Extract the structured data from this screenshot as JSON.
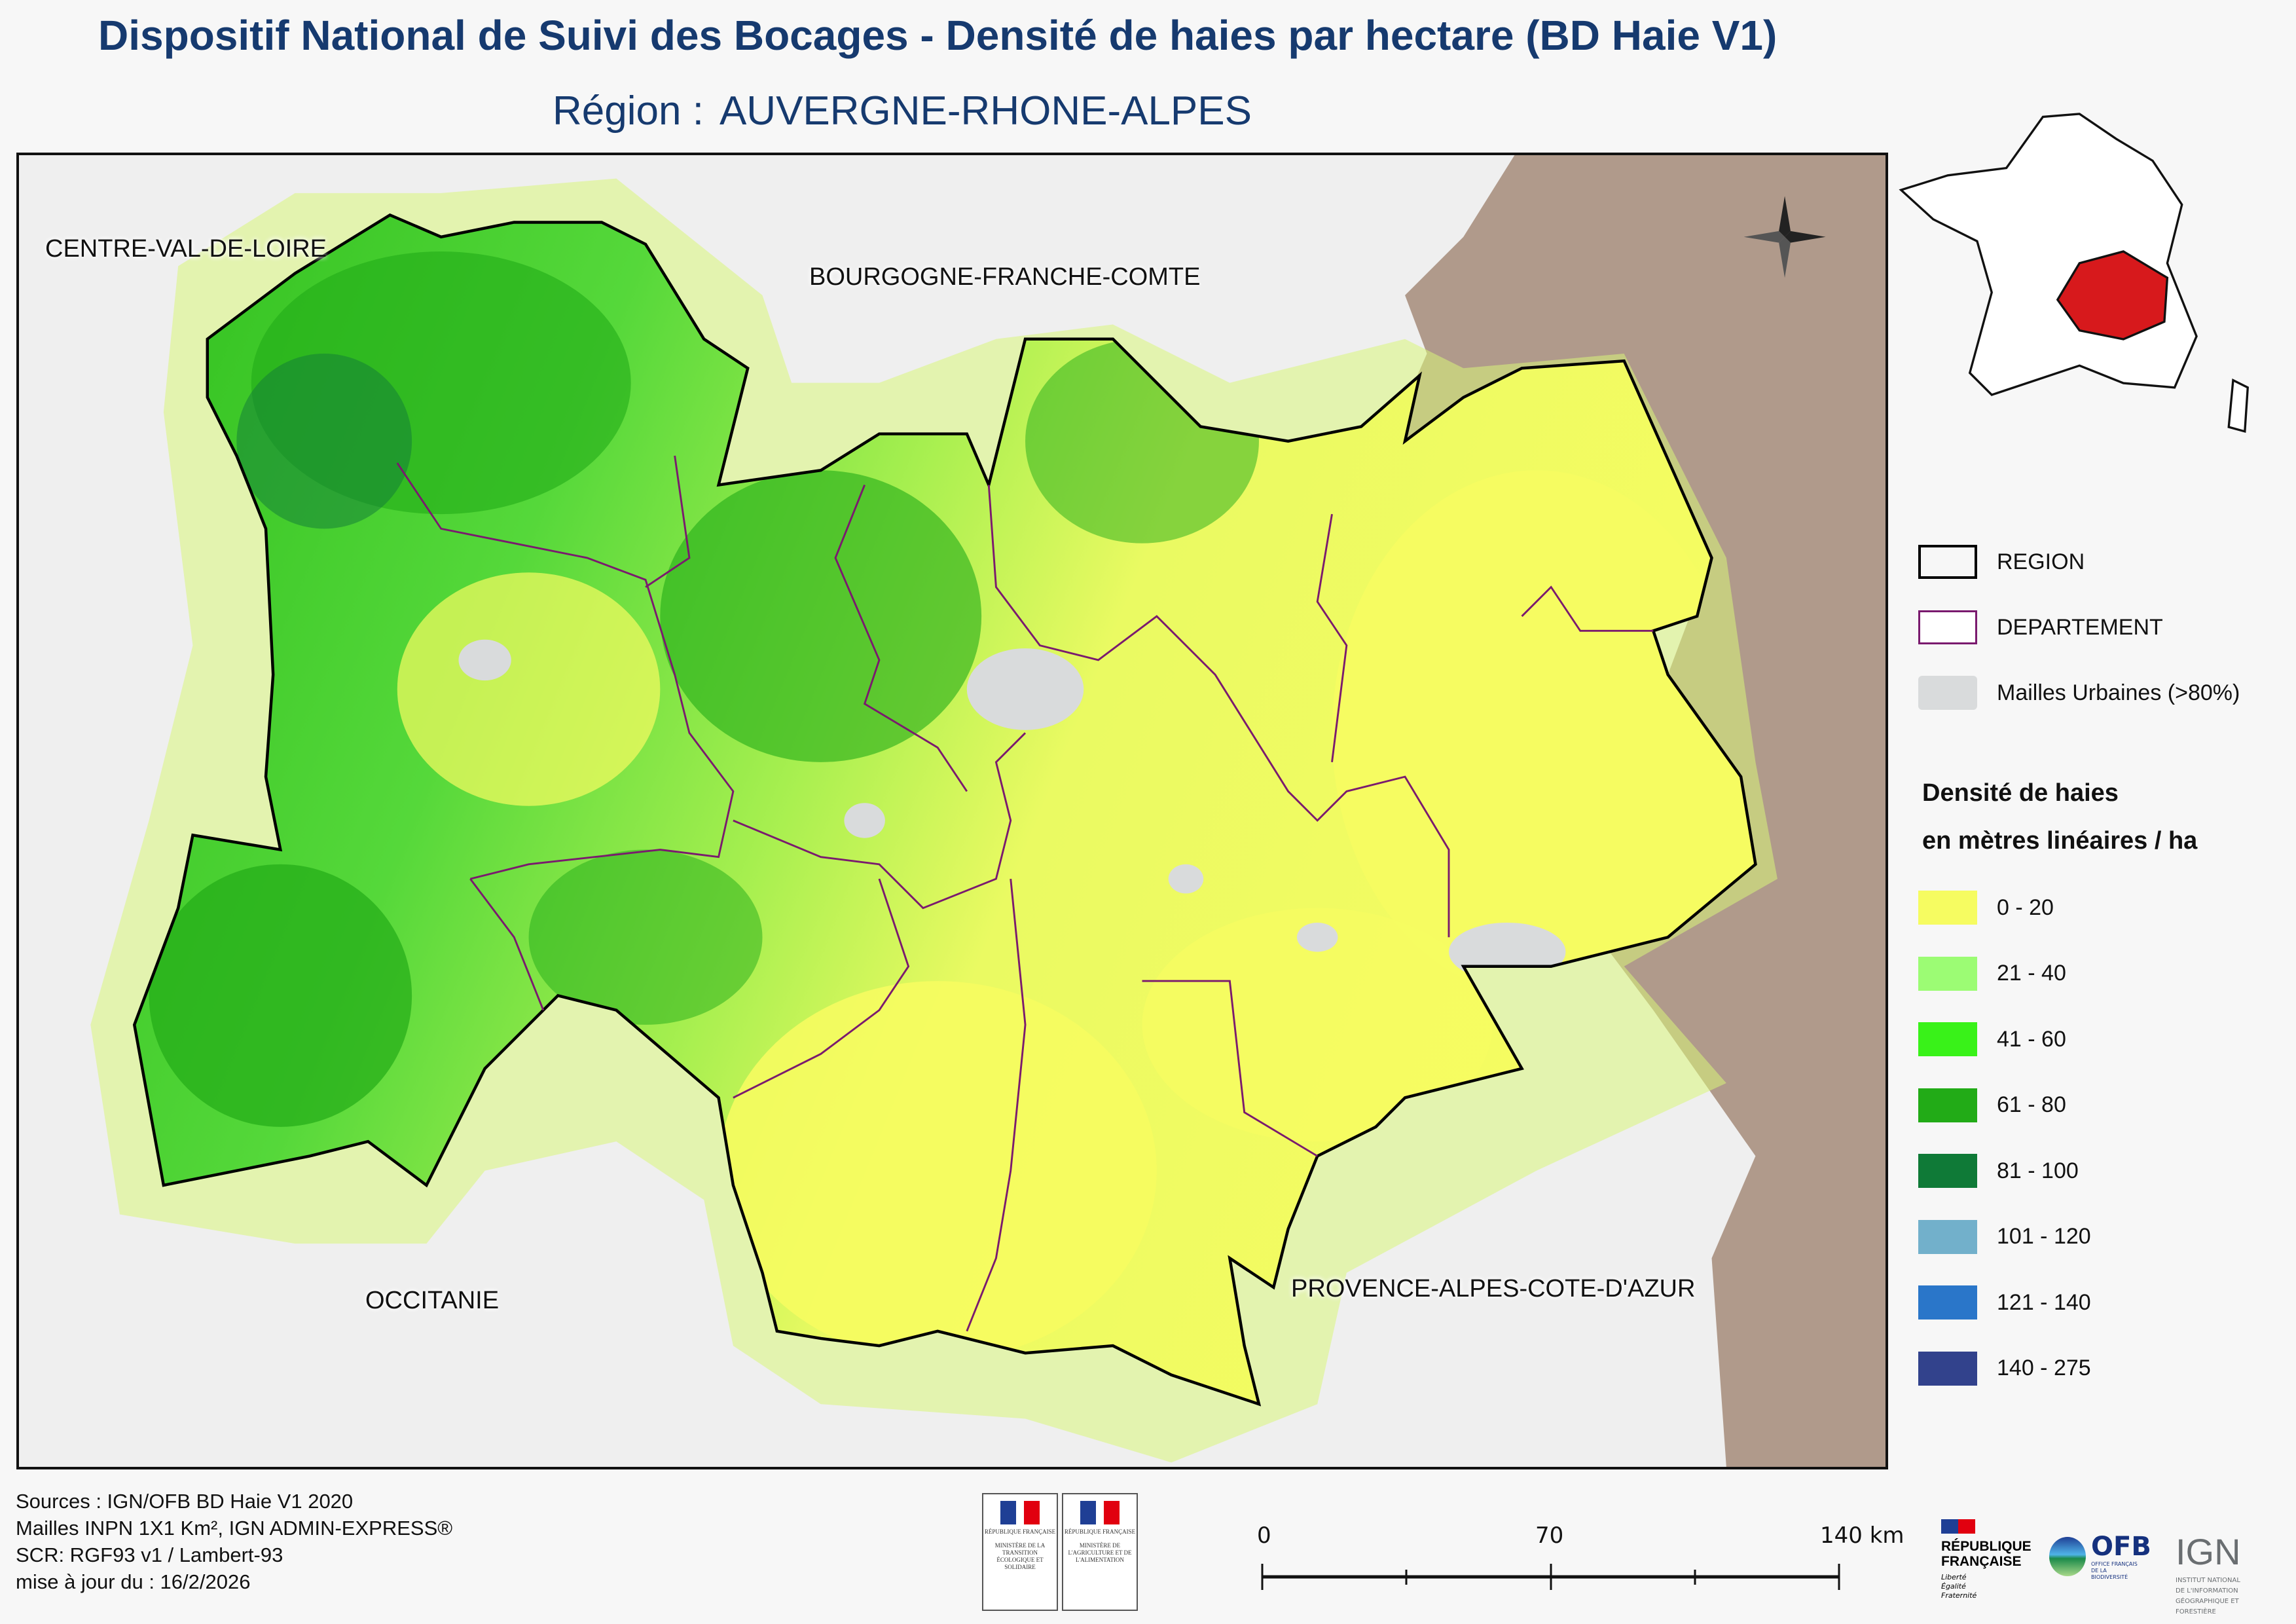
{
  "header": {
    "title": "Dispositif National de Suivi des Bocages - Densité de haies par hectare (BD Haie V1)",
    "region_label": "Région :",
    "region_name": "AUVERGNE-RHONE-ALPES"
  },
  "map": {
    "neighbor_labels": [
      "CENTRE-VAL-DE-LOIRE",
      "BOURGOGNE-FRANCHE-COMTE",
      "OCCITANIE",
      "PROVENCE-ALPES-COTE-D'AZUR"
    ],
    "compass_icon": "north-arrow-compass-icon",
    "colors": {
      "background": "#efefef",
      "foreign": "#b09a8b",
      "urban": "#d9dbdc",
      "region_border": "#000000",
      "department_border": "#7a1a6e"
    }
  },
  "inset": {
    "highlight_color": "#d7191c"
  },
  "legend": {
    "boundaries": [
      {
        "label": "REGION",
        "stroke": "#000000"
      },
      {
        "label": "DEPARTEMENT",
        "stroke": "#7a1a6e"
      },
      {
        "label": "Mailles Urbaines (>80%)",
        "fill": "#d9dbdc"
      }
    ],
    "density_title_1": "Densité de haies",
    "density_title_2": "en mètres linéaires / ha",
    "classes": [
      {
        "label": "0 - 20",
        "color": "#f6fc61"
      },
      {
        "label": "21 - 40",
        "color": "#9cfc74"
      },
      {
        "label": "41 - 60",
        "color": "#39f219"
      },
      {
        "label": "61 - 80",
        "color": "#22ab17"
      },
      {
        "label": "81 - 100",
        "color": "#0f7a37"
      },
      {
        "label": "101 - 120",
        "color": "#72b0cb"
      },
      {
        "label": "121 - 140",
        "color": "#2a76c9"
      },
      {
        "label": "140 - 275",
        "color": "#32428c"
      }
    ]
  },
  "footer": {
    "sources": [
      "Sources : IGN/OFB BD Haie V1 2020",
      "Mailles INPN 1X1 Km², IGN ADMIN-EXPRESS®",
      "SCR: RGF93 v1 / Lambert-93",
      "mise à jour du  : 16/2/2026"
    ],
    "ministries": [
      {
        "top": "RÉPUBLIQUE FRANÇAISE",
        "name": "MINISTÈRE DE LA TRANSITION ÉCOLOGIQUE ET SOLIDAIRE"
      },
      {
        "top": "RÉPUBLIQUE FRANÇAISE",
        "name": "MINISTÈRE DE L'AGRICULTURE ET DE L'ALIMENTATION"
      }
    ],
    "scale": {
      "labels": [
        "0",
        "70",
        "140 km"
      ]
    },
    "rf_logo": {
      "line1": "RÉPUBLIQUE",
      "line2": "FRANÇAISE",
      "motto": "Liberté Égalité Fraternité"
    },
    "ofb_logo": {
      "name": "OFB",
      "sub": "OFFICE FRANÇAIS DE LA BIODIVERSITÉ"
    },
    "ign_logo": {
      "name": "IGN",
      "sub": "INSTITUT NATIONAL DE L'INFORMATION GÉOGRAPHIQUE ET FORESTIÈRE"
    }
  }
}
